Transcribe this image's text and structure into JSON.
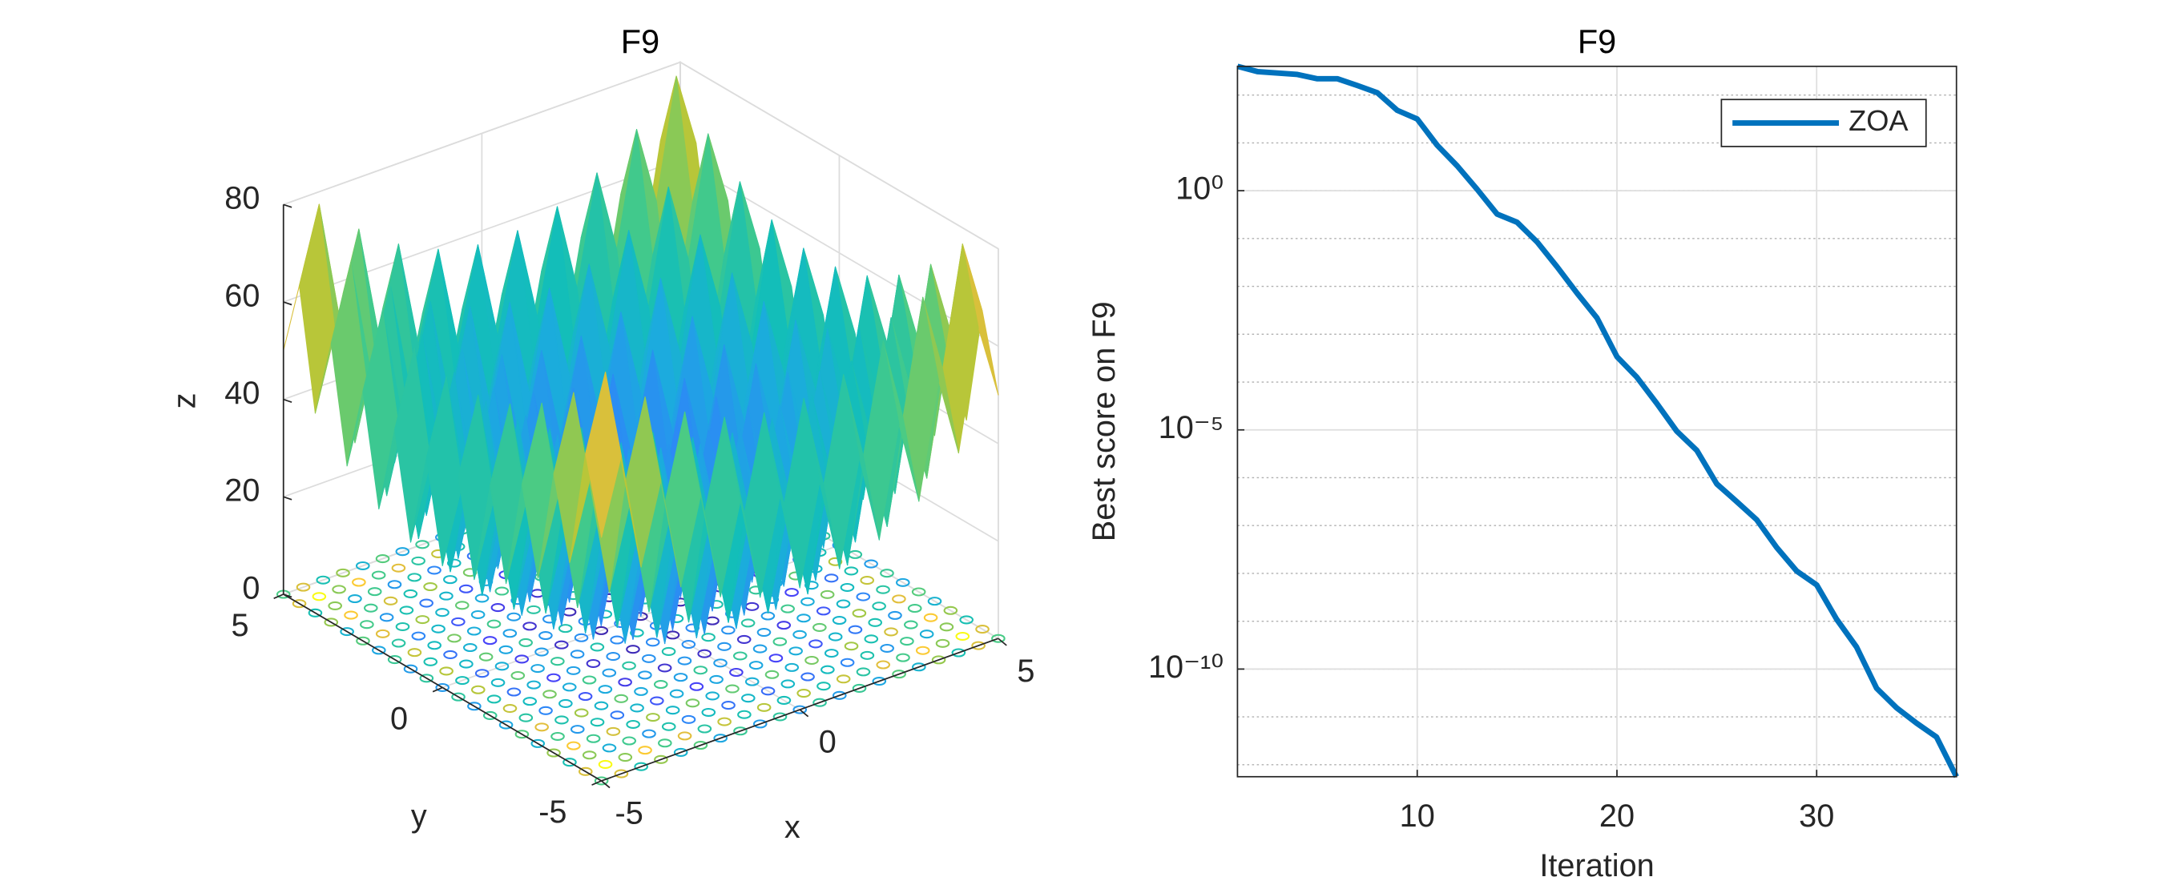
{
  "chart_data": [
    {
      "type": "surface",
      "title": "F9",
      "xlabel": "x",
      "ylabel": "y",
      "zlabel": "z",
      "x": [
        -5,
        -4.5,
        -4,
        -3.5,
        -3,
        -2.5,
        -2,
        -1.5,
        -1,
        -0.5,
        0,
        0.5,
        1,
        1.5,
        2,
        2.5,
        3,
        3.5,
        4,
        4.5,
        5
      ],
      "y": [
        -5,
        -4.5,
        -4,
        -3.5,
        -3,
        -2.5,
        -2,
        -1.5,
        -1,
        -0.5,
        0,
        0.5,
        1,
        1.5,
        2,
        2.5,
        3,
        3.5,
        4,
        4.5,
        5
      ],
      "z": [
        [
          50,
          65.25,
          41,
          57.25,
          34,
          51.25,
          29,
          47.25,
          26,
          45.25,
          25,
          45.25,
          26,
          47.25,
          29,
          51.25,
          34,
          57.25,
          41,
          65.25,
          50
        ],
        [
          65.25,
          80.5,
          56.25,
          72.5,
          49.25,
          66.5,
          44.25,
          62.5,
          41.25,
          60.5,
          40.25,
          60.5,
          41.25,
          62.5,
          44.25,
          66.5,
          49.25,
          72.5,
          56.25,
          80.5,
          65.25
        ],
        [
          41,
          56.25,
          32,
          48.25,
          25,
          42.25,
          20,
          38.25,
          17,
          36.25,
          16,
          36.25,
          17,
          38.25,
          20,
          42.25,
          25,
          48.25,
          32,
          56.25,
          41
        ],
        [
          57.25,
          72.5,
          48.25,
          64.5,
          41.25,
          58.5,
          36.25,
          54.5,
          33.25,
          52.5,
          32.25,
          52.5,
          33.25,
          54.5,
          36.25,
          58.5,
          41.25,
          64.5,
          48.25,
          72.5,
          57.25
        ],
        [
          34,
          49.25,
          25,
          41.25,
          18,
          35.25,
          13,
          31.25,
          10,
          29.25,
          9,
          29.25,
          10,
          31.25,
          13,
          35.25,
          18,
          41.25,
          25,
          49.25,
          34
        ],
        [
          51.25,
          66.5,
          42.25,
          58.5,
          35.25,
          52.5,
          30.25,
          48.5,
          27.25,
          46.5,
          26.25,
          46.5,
          27.25,
          48.5,
          30.25,
          52.5,
          35.25,
          58.5,
          42.25,
          66.5,
          51.25
        ],
        [
          29,
          44.25,
          20,
          36.25,
          13,
          30.25,
          8,
          26.25,
          5,
          24.25,
          4,
          24.25,
          5,
          26.25,
          8,
          30.25,
          13,
          36.25,
          20,
          44.25,
          29
        ],
        [
          47.25,
          62.5,
          38.25,
          54.5,
          31.25,
          48.5,
          26.25,
          44.5,
          23.25,
          42.5,
          22.25,
          42.5,
          23.25,
          44.5,
          26.25,
          48.5,
          31.25,
          54.5,
          38.25,
          62.5,
          47.25
        ],
        [
          26,
          41.25,
          17,
          33.25,
          10,
          27.25,
          5,
          23.25,
          2,
          21.25,
          1,
          21.25,
          2,
          23.25,
          5,
          27.25,
          10,
          33.25,
          17,
          41.25,
          26
        ],
        [
          45.25,
          60.5,
          36.25,
          52.5,
          29.25,
          46.5,
          24.25,
          42.5,
          21.25,
          40.5,
          20.25,
          40.5,
          21.25,
          42.5,
          24.25,
          46.5,
          29.25,
          52.5,
          36.25,
          60.5,
          45.25
        ],
        [
          25,
          40.25,
          16,
          32.25,
          9,
          26.25,
          4,
          22.25,
          1,
          20.25,
          0,
          20.25,
          1,
          22.25,
          4,
          26.25,
          9,
          32.25,
          16,
          40.25,
          25
        ],
        [
          45.25,
          60.5,
          36.25,
          52.5,
          29.25,
          46.5,
          24.25,
          42.5,
          21.25,
          40.5,
          20.25,
          40.5,
          21.25,
          42.5,
          24.25,
          46.5,
          29.25,
          52.5,
          36.25,
          60.5,
          45.25
        ],
        [
          26,
          41.25,
          17,
          33.25,
          10,
          27.25,
          5,
          23.25,
          2,
          21.25,
          1,
          21.25,
          2,
          23.25,
          5,
          27.25,
          10,
          33.25,
          17,
          41.25,
          26
        ],
        [
          47.25,
          62.5,
          38.25,
          54.5,
          31.25,
          48.5,
          26.25,
          44.5,
          23.25,
          42.5,
          22.25,
          42.5,
          23.25,
          44.5,
          26.25,
          48.5,
          31.25,
          54.5,
          38.25,
          62.5,
          47.25
        ],
        [
          29,
          44.25,
          20,
          36.25,
          13,
          30.25,
          8,
          26.25,
          5,
          24.25,
          4,
          24.25,
          5,
          26.25,
          8,
          30.25,
          13,
          36.25,
          20,
          44.25,
          29
        ],
        [
          51.25,
          66.5,
          42.25,
          58.5,
          35.25,
          52.5,
          30.25,
          48.5,
          27.25,
          46.5,
          26.25,
          46.5,
          27.25,
          48.5,
          30.25,
          52.5,
          35.25,
          58.5,
          42.25,
          66.5,
          51.25
        ],
        [
          34,
          49.25,
          25,
          41.25,
          18,
          35.25,
          13,
          31.25,
          10,
          29.25,
          9,
          29.25,
          10,
          31.25,
          13,
          35.25,
          18,
          41.25,
          25,
          49.25,
          34
        ],
        [
          57.25,
          72.5,
          48.25,
          64.5,
          41.25,
          58.5,
          36.25,
          54.5,
          33.25,
          52.5,
          32.25,
          52.5,
          33.25,
          54.5,
          36.25,
          58.5,
          41.25,
          64.5,
          48.25,
          72.5,
          57.25
        ],
        [
          41,
          56.25,
          32,
          48.25,
          25,
          42.25,
          20,
          38.25,
          17,
          36.25,
          16,
          36.25,
          17,
          38.25,
          20,
          42.25,
          25,
          48.25,
          32,
          56.25,
          41
        ],
        [
          65.25,
          80.5,
          56.25,
          72.5,
          49.25,
          66.5,
          44.25,
          62.5,
          41.25,
          60.5,
          40.25,
          60.5,
          41.25,
          62.5,
          44.25,
          66.5,
          49.25,
          72.5,
          56.25,
          80.5,
          65.25
        ],
        [
          50,
          65.25,
          41,
          57.25,
          34,
          51.25,
          29,
          47.25,
          26,
          45.25,
          25,
          45.25,
          26,
          47.25,
          29,
          51.25,
          34,
          57.25,
          41,
          65.25,
          50
        ]
      ],
      "xlim": [
        -5,
        5
      ],
      "ylim": [
        -5,
        5
      ],
      "zlim": [
        0,
        80
      ],
      "xticks": [
        -5,
        0,
        5
      ],
      "yticks": [
        -5,
        0,
        5
      ],
      "zticks": [
        0,
        20,
        40,
        60,
        80
      ],
      "colormap": "parula",
      "grid": true,
      "contour": true
    },
    {
      "type": "line",
      "title": "F9",
      "xlabel": "Iteration",
      "ylabel": "Best score on F9",
      "x": [
        1,
        2,
        3,
        4,
        5,
        6,
        7,
        8,
        9,
        10,
        11,
        12,
        13,
        14,
        15,
        16,
        17,
        18,
        19,
        20,
        21,
        22,
        23,
        24,
        25,
        26,
        27,
        28,
        29,
        30,
        31,
        32,
        33,
        34,
        35,
        36,
        37
      ],
      "series": [
        {
          "name": "ZOA",
          "color": "#0072bd",
          "values": [
            398,
            309,
            288,
            269,
            219,
            219,
            158,
            112,
            47.9,
            31.6,
            8.91,
            3.31,
            1.07,
            0.324,
            0.219,
            0.0851,
            0.0257,
            0.00724,
            0.00219,
            0.000339,
            0.000126,
            3.55e-05,
            9.33e-06,
            3.72e-06,
            7.41e-07,
            3.16e-07,
            1.32e-07,
            3.47e-08,
            1.12e-08,
            5.75e-09,
            1.1e-09,
            2.88e-10,
            3.98e-11,
            1.55e-11,
            7.41e-12,
            3.8e-12,
            5.62e-13
          ]
        }
      ],
      "xlim": [
        1,
        37
      ],
      "xticks": [
        10,
        20,
        30
      ],
      "ylim": [
        5.62e-13,
        398
      ],
      "ylog": true,
      "yticks": [
        {
          "value": 1,
          "label": "10⁰"
        },
        {
          "value": 1e-05,
          "label": "10⁻⁵"
        },
        {
          "value": 1e-10,
          "label": "10⁻¹⁰"
        }
      ],
      "yminorticks": [
        1e-12,
        1e-11,
        1e-10,
        1e-09,
        1e-08,
        1e-07,
        1e-06,
        1e-05,
        0.0001,
        0.001,
        0.01,
        0.1,
        1,
        10,
        100
      ],
      "grid": true,
      "legend": "northeast"
    }
  ]
}
